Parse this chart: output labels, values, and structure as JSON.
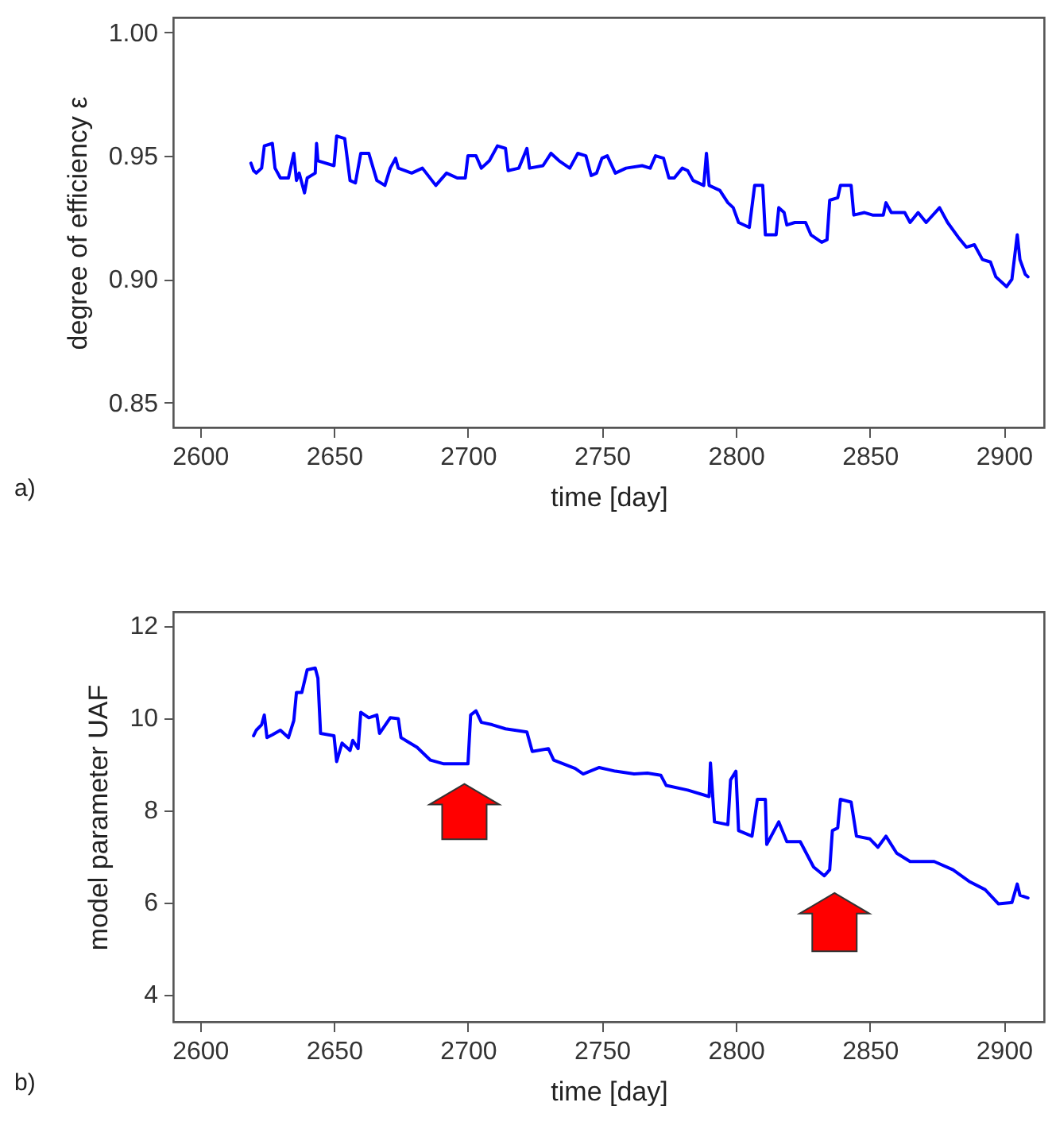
{
  "chart_data": [
    {
      "type": "line",
      "xlabel": "time [day]",
      "ylabel": "degree of efficiency ε",
      "xlim": [
        2590,
        2915
      ],
      "xticks": [
        2600,
        2650,
        2700,
        2750,
        2800,
        2850,
        2900
      ],
      "ylim": [
        0.84,
        1.006
      ],
      "yticks": [
        0.85,
        {
          "value": 0.9,
          "label": "0.90"
        },
        0.95,
        {
          "value": 1.0,
          "label": "1.00"
        }
      ],
      "annotations": [
        "a)"
      ],
      "series": [
        {
          "color": "#0000ff",
          "x": [
            2619,
            2620,
            2621,
            2623,
            2624,
            2627,
            2628,
            2630,
            2633,
            2635,
            2636,
            2637,
            2639,
            2640,
            2643,
            2643.5,
            2644,
            2650,
            2651,
            2654,
            2656,
            2658,
            2660,
            2663,
            2666,
            2669,
            2671,
            2673,
            2674,
            2679,
            2683,
            2688,
            2692,
            2696,
            2699,
            2700,
            2703,
            2705,
            2708,
            2711,
            2714,
            2715,
            2719,
            2722,
            2723,
            2728,
            2731,
            2734,
            2738,
            2741,
            2744,
            2746,
            2748,
            2750,
            2752,
            2755,
            2759,
            2765,
            2768,
            2770,
            2773,
            2775,
            2777,
            2780,
            2782,
            2784,
            2788,
            2789,
            2790,
            2794,
            2797,
            2799,
            2801,
            2805,
            2807,
            2810,
            2811,
            2815,
            2816,
            2818,
            2819,
            2822,
            2826,
            2828,
            2832,
            2834,
            2835,
            2838,
            2839,
            2843,
            2844,
            2848,
            2851,
            2855,
            2856,
            2858,
            2863,
            2865,
            2868,
            2871,
            2876,
            2879,
            2883,
            2886,
            2889,
            2892,
            2895,
            2897,
            2901,
            2903,
            2905,
            2906,
            2908,
            2909
          ],
          "values": [
            0.947,
            0.944,
            0.943,
            0.945,
            0.954,
            0.955,
            0.945,
            0.941,
            0.941,
            0.951,
            0.94,
            0.943,
            0.935,
            0.941,
            0.943,
            0.955,
            0.948,
            0.946,
            0.958,
            0.957,
            0.94,
            0.939,
            0.951,
            0.951,
            0.94,
            0.938,
            0.945,
            0.949,
            0.945,
            0.943,
            0.945,
            0.938,
            0.943,
            0.941,
            0.941,
            0.95,
            0.95,
            0.945,
            0.948,
            0.954,
            0.953,
            0.944,
            0.945,
            0.953,
            0.945,
            0.946,
            0.951,
            0.948,
            0.945,
            0.951,
            0.95,
            0.942,
            0.943,
            0.949,
            0.95,
            0.943,
            0.945,
            0.946,
            0.945,
            0.95,
            0.949,
            0.941,
            0.941,
            0.945,
            0.944,
            0.94,
            0.938,
            0.951,
            0.938,
            0.936,
            0.931,
            0.929,
            0.923,
            0.921,
            0.938,
            0.938,
            0.918,
            0.918,
            0.929,
            0.927,
            0.922,
            0.923,
            0.923,
            0.918,
            0.915,
            0.916,
            0.932,
            0.933,
            0.938,
            0.938,
            0.926,
            0.927,
            0.926,
            0.926,
            0.931,
            0.927,
            0.927,
            0.923,
            0.927,
            0.923,
            0.929,
            0.923,
            0.917,
            0.913,
            0.914,
            0.908,
            0.907,
            0.901,
            0.897,
            0.9,
            0.918,
            0.908,
            0.902,
            0.901
          ]
        }
      ]
    },
    {
      "type": "line",
      "xlabel": "time [day]",
      "ylabel": "model parameter UAF",
      "xlim": [
        2590,
        2915
      ],
      "xticks": [
        2600,
        2650,
        2700,
        2750,
        2800,
        2850,
        2900
      ],
      "ylim": [
        3.4,
        12.3
      ],
      "yticks": [
        4,
        6,
        8,
        10,
        12
      ],
      "annotations": [
        "b)"
      ],
      "series": [
        {
          "color": "#0000ff",
          "x": [
            2620,
            2621,
            2623,
            2624,
            2625,
            2627,
            2630,
            2633,
            2635,
            2636,
            2638,
            2640,
            2643,
            2644,
            2645,
            2650,
            2651,
            2653,
            2656,
            2657,
            2659,
            2660,
            2663,
            2666,
            2667,
            2671,
            2674,
            2675,
            2681,
            2686,
            2691,
            2695,
            2700,
            2701,
            2703,
            2705,
            2709,
            2714,
            2722,
            2724,
            2730,
            2732,
            2740,
            2743,
            2749,
            2755,
            2762,
            2767,
            2772,
            2774,
            2782,
            2790,
            2790.5,
            2792,
            2797,
            2798,
            2800,
            2801,
            2806,
            2808,
            2811,
            2811.5,
            2816,
            2819,
            2824,
            2829,
            2833,
            2835,
            2836,
            2838,
            2839,
            2843,
            2845,
            2850,
            2853,
            2856,
            2860,
            2865,
            2874,
            2881,
            2887,
            2893,
            2898,
            2903,
            2905,
            2906,
            2909
          ],
          "values": [
            9.61,
            9.73,
            9.85,
            10.06,
            9.57,
            9.63,
            9.73,
            9.57,
            9.94,
            10.55,
            10.55,
            11.04,
            11.08,
            10.86,
            9.66,
            9.61,
            9.05,
            9.45,
            9.29,
            9.51,
            9.33,
            10.12,
            10.0,
            10.06,
            9.66,
            10.0,
            9.98,
            9.57,
            9.36,
            9.08,
            9.0,
            9.0,
            9.0,
            10.06,
            10.15,
            9.9,
            9.85,
            9.76,
            9.69,
            9.27,
            9.33,
            9.08,
            8.9,
            8.78,
            8.92,
            8.84,
            8.78,
            8.8,
            8.75,
            8.53,
            8.43,
            8.29,
            9.02,
            7.74,
            7.68,
            8.65,
            8.84,
            7.55,
            7.43,
            8.23,
            8.23,
            7.25,
            7.74,
            7.31,
            7.31,
            6.76,
            6.57,
            6.7,
            7.55,
            7.61,
            8.23,
            8.17,
            7.43,
            7.37,
            7.19,
            7.43,
            7.06,
            6.88,
            6.88,
            6.7,
            6.45,
            6.27,
            5.96,
            5.99,
            6.39,
            6.15,
            6.09
          ]
        }
      ]
    }
  ]
}
